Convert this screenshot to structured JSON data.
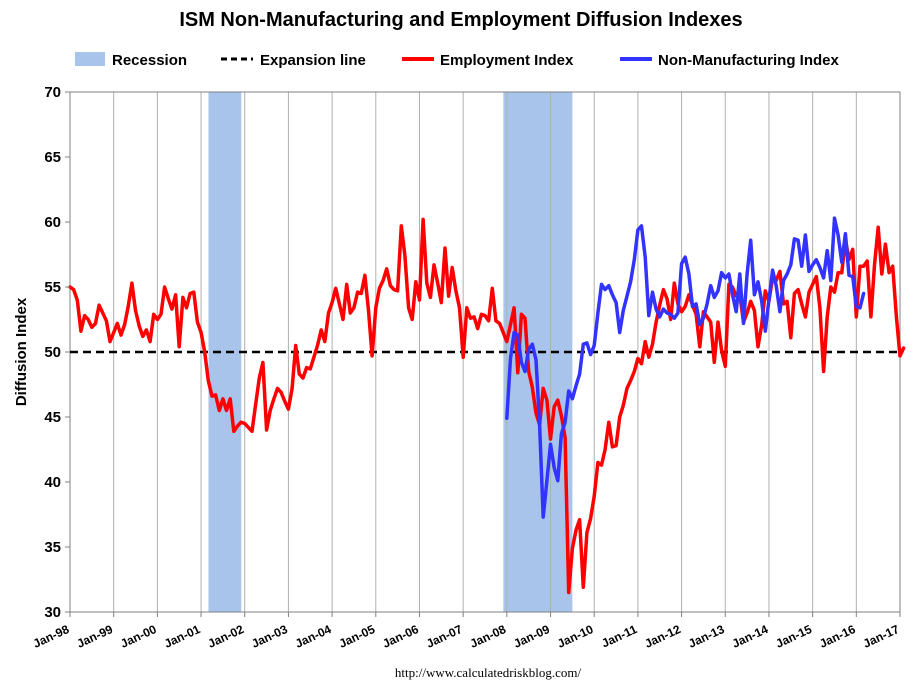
{
  "chart_data": {
    "type": "line",
    "title": "ISM Non-Manufacturing and Employment Diffusion Indexes",
    "ylabel": "Diffusion Index",
    "xlabel": "",
    "ylim": [
      30,
      70
    ],
    "yticks": [
      30,
      35,
      40,
      45,
      50,
      55,
      60,
      65,
      70
    ],
    "xticks": [
      "Jan-98",
      "Jan-99",
      "Jan-00",
      "Jan-01",
      "Jan-02",
      "Jan-03",
      "Jan-04",
      "Jan-05",
      "Jan-06",
      "Jan-07",
      "Jan-08",
      "Jan-09",
      "Jan-10",
      "Jan-11",
      "Jan-12",
      "Jan-13",
      "Jan-14",
      "Jan-15",
      "Jan-16",
      "Jan-17"
    ],
    "xrange_years": [
      1998,
      2017
    ],
    "grid": "vertical",
    "legend_position": "top",
    "legend": [
      {
        "name": "Recession",
        "style": "band",
        "color": "#a9c4eb"
      },
      {
        "name": "Expansion line",
        "style": "dashed",
        "color": "#000000"
      },
      {
        "name": "Employment Index",
        "style": "line",
        "color": "#ff0000"
      },
      {
        "name": "Non-Manufacturing Index",
        "style": "line",
        "color": "#3333ff"
      }
    ],
    "recessions": [
      {
        "label": "Recession",
        "start": "Mar-01",
        "end": "Nov-01",
        "start_year": 2001.17,
        "end_year": 2001.92
      },
      {
        "label": "Recession",
        "start": "Dec-07",
        "end": "Jun-09",
        "start_year": 2007.92,
        "end_year": 2009.5
      }
    ],
    "reference_line": {
      "label": "Expansion line",
      "value": 50
    },
    "series": [
      {
        "name": "Employment Index",
        "color": "#ff0000",
        "start": "Jan-98",
        "frequency": "monthly",
        "values": [
          55,
          54.8,
          54,
          51.6,
          52.8,
          52.5,
          51.9,
          52.2,
          53.6,
          53,
          52.4,
          50.8,
          51.5,
          52.2,
          51.3,
          52.1,
          53.5,
          55.3,
          53.2,
          52,
          51.2,
          51.7,
          50.8,
          52.9,
          52.5,
          52.9,
          55,
          54.1,
          53.3,
          54.4,
          50.4,
          54.2,
          53.4,
          54.5,
          54.6,
          52.3,
          51.5,
          50,
          47.8,
          46.6,
          46.7,
          45.5,
          46.4,
          45.5,
          46.4,
          43.9,
          44.3,
          44.6,
          44.5,
          44.2,
          43.9,
          46,
          48,
          49.2,
          44,
          45.5,
          46.4,
          47.2,
          46.9,
          46.2,
          45.6,
          47.2,
          50.5,
          48.3,
          48,
          48.8,
          48.7,
          49.6,
          50.5,
          51.7,
          50.8,
          53,
          53.8,
          54.9,
          53.7,
          52.5,
          55.2,
          53,
          53.4,
          54.6,
          54.5,
          55.9,
          53.2,
          49.7,
          53.4,
          54.9,
          55.5,
          56.4,
          55.1,
          54.8,
          54.7,
          59.7,
          57.4,
          53.4,
          52.5,
          55.4,
          54,
          60.2,
          55.3,
          54.2,
          56.7,
          55.3,
          53.8,
          58,
          54.3,
          56.5,
          54.7,
          53.4,
          49.6,
          53.4,
          52.6,
          52.7,
          51.8,
          52.9,
          52.8,
          52.4,
          54.9,
          52.4,
          52.2,
          51.5,
          50.8,
          52.1,
          53.4,
          48.4,
          52.9,
          52.6,
          48.5,
          47.3,
          45.3,
          44.4,
          47.2,
          46.3,
          43.3,
          45.8,
          46.3,
          45.1,
          43.4,
          31.5,
          34.9,
          36.3,
          37.1,
          31.9,
          36.1,
          37.2,
          38.9,
          41.5,
          41.3,
          42.5,
          44.6,
          42.7,
          42.8,
          45,
          45.9,
          47.2,
          47.8,
          48.5,
          49.5,
          49.1,
          50.8,
          49.6,
          50.6,
          52.3,
          53.6,
          54.8,
          54.1,
          52.5,
          55.3,
          53.7,
          53.1,
          53.5,
          54.4,
          53.6,
          52.9,
          50.4,
          53.1,
          52.7,
          52.3,
          49.2,
          52.3,
          50.1,
          48.9,
          55.2,
          55,
          54.3,
          54.4,
          52.3,
          53,
          53.9,
          53.2,
          50.4,
          52.1,
          54.7,
          53.9,
          55.7,
          55.5,
          56.2,
          53.7,
          53.9,
          51.1,
          54.5,
          54.8,
          53.7,
          52.7,
          54.6,
          55.2,
          55.8,
          53.4,
          48.5,
          52.7,
          55,
          54.6,
          56.1,
          56.1,
          58.7,
          57.1,
          57.9,
          52.7,
          56.6,
          56.6,
          57,
          52.7,
          56.7,
          59.6,
          56,
          58.3,
          56.1,
          56.6,
          52.7,
          49.7,
          50.3
        ]
      },
      {
        "name": "Non-Manufacturing Index",
        "color": "#3333ff",
        "start": "Jan-08",
        "frequency": "monthly",
        "values": [
          44.9,
          49.5,
          51.5,
          51.3,
          49.2,
          48.5,
          50.2,
          50.6,
          49.4,
          44.4,
          37.3,
          40.1,
          42.9,
          41.1,
          40.1,
          43.7,
          44.6,
          47,
          46.4,
          47.4,
          48.3,
          50.6,
          50.7,
          49.8,
          50.5,
          53,
          55.2,
          54.8,
          55.1,
          54.4,
          53.8,
          51.5,
          53.2,
          54.3,
          55.4,
          57.1,
          59.4,
          59.7,
          57.3,
          52.8,
          54.6,
          53.3,
          52.7,
          53.3,
          53,
          52.9,
          52.6,
          53,
          56.8,
          57.3,
          56,
          53.5,
          53.7,
          52.1,
          52.6,
          53.7,
          55.1,
          54.2,
          54.7,
          56.1,
          55.7,
          56,
          54.4,
          53.1,
          56,
          52.2,
          56,
          58.6,
          54.4,
          55.4,
          53.9,
          51.6,
          54,
          56.3,
          55.1,
          53.1,
          55.5,
          56,
          56.7,
          58.7,
          58.6,
          56.6,
          59,
          56.2,
          56.7,
          57.1,
          56.5,
          55.7,
          57.8,
          55.5,
          60.3,
          59,
          56.9,
          59.1,
          55.9,
          55.8,
          53.5,
          53.4,
          54.5
        ]
      }
    ]
  },
  "source": "http://www.calculatedriskblog.com/"
}
